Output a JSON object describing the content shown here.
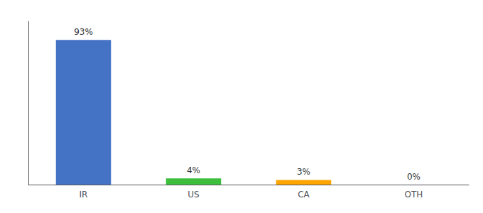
{
  "chart_data": {
    "type": "bar",
    "categories": [
      "IR",
      "US",
      "CA",
      "OTH"
    ],
    "values": [
      93,
      4,
      3,
      0
    ],
    "value_labels": [
      "93%",
      "4%",
      "3%",
      "0%"
    ],
    "data_labels": true,
    "colors": [
      "#4472c4",
      "#3dbf3d",
      "#ffa500",
      "#cccccc"
    ],
    "ylim": [
      0,
      105
    ],
    "grid": false,
    "tick_labels": "x"
  }
}
